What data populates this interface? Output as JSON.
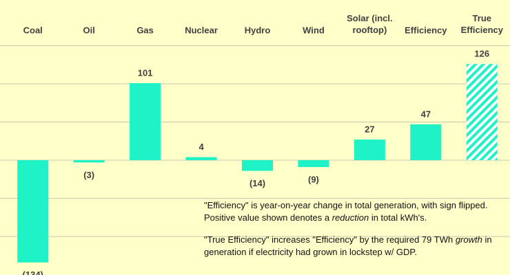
{
  "chart_data": {
    "type": "bar",
    "categories": [
      "Coal",
      "Oil",
      "Gas",
      "Nuclear",
      "Hydro",
      "Wind",
      "Solar (incl. rooftop)",
      "Efficiency",
      "True Efficiency"
    ],
    "values": [
      -134,
      -3,
      101,
      4,
      -14,
      -9,
      27,
      47,
      126
    ],
    "value_labels": [
      "(134)",
      "(3)",
      "101",
      "4",
      "(14)",
      "(9)",
      "27",
      "47",
      "126"
    ],
    "styles": [
      "solid",
      "solid",
      "solid",
      "solid",
      "solid",
      "solid",
      "solid",
      "solid",
      "hatched"
    ],
    "color": "#1ef2c6",
    "ylim": [
      -150,
      150
    ],
    "yticks": [
      -100,
      -50,
      0,
      50,
      100,
      150
    ],
    "grid": true,
    "annotations": [
      [
        {
          "text": "\"Efficiency\" is year-on-year change in total generation, with sign flipped. Positive value shown denotes a "
        },
        {
          "text": "reduction",
          "italic": true
        },
        {
          "text": " in total kWh's."
        }
      ],
      [
        {
          "text": "\"True Efficiency\" increases \"Efficiency\" by the required 79 TWh "
        },
        {
          "text": "growth",
          "italic": true
        },
        {
          "text": " in generation if electricity had grown in lockstep w/ GDP."
        }
      ]
    ]
  }
}
